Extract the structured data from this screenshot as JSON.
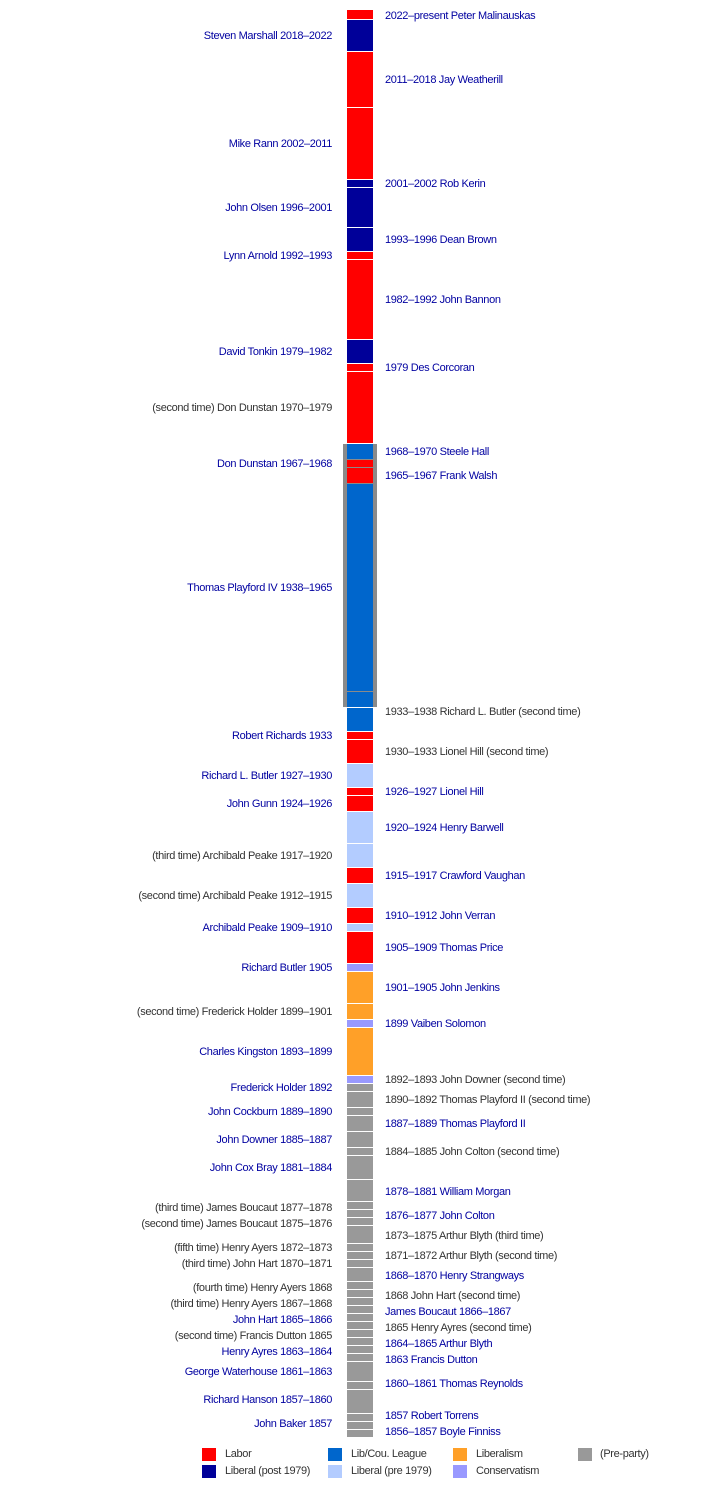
{
  "colors": {
    "Labor": "#ff0000",
    "Liberal (post 1979)": "#000099",
    "Lib/Cou. League": "#0066cc",
    "Liberal (pre 1979)": "#b3ccff",
    "Liberalism": "#ffa028",
    "Conservatism": "#9999ff",
    "(Pre-party)": "#999999"
  },
  "segments": [
    {
      "premier": "Peter Malinauskas",
      "party": "Labor"
    },
    {
      "premier": "Steven Marshall",
      "party": "Liberal (post 1979)"
    },
    {
      "premier": "Jay Weatherill",
      "party": "Labor"
    },
    {
      "premier": "Mike Rann",
      "party": "Labor"
    },
    {
      "premier": "Rob Kerin",
      "party": "Liberal (post 1979)"
    },
    {
      "premier": "John Olsen",
      "party": "Liberal (post 1979)"
    },
    {
      "premier": "Dean Brown",
      "party": "Liberal (post 1979)"
    },
    {
      "premier": "Lynn Arnold",
      "party": "Labor"
    },
    {
      "premier": "John Bannon",
      "party": "Labor"
    },
    {
      "premier": "David Tonkin",
      "party": "Liberal (post 1979)"
    },
    {
      "premier": "Des Corcoran",
      "party": "Labor"
    },
    {
      "premier": "Don Dunstan (second time)",
      "party": "Labor"
    },
    {
      "premier": "Steele Hall",
      "party": "Lib/Cou. League"
    },
    {
      "premier": "Don Dunstan",
      "party": "Labor"
    },
    {
      "premier": "Frank Walsh",
      "party": "Labor"
    },
    {
      "premier": "Thomas Playford IV",
      "party": "Lib/Cou. League"
    },
    {
      "premier": "Thomas Playford IV",
      "party": "Lib/Cou. League"
    },
    {
      "premier": "Richard L. Butler (second time)",
      "party": "Lib/Cou. League"
    },
    {
      "premier": "Robert Richards",
      "party": "Labor"
    },
    {
      "premier": "Lionel Hill (second time)",
      "party": "Labor"
    },
    {
      "premier": "Richard L. Butler",
      "party": "Liberal (pre 1979)"
    },
    {
      "premier": "Lionel Hill",
      "party": "Labor"
    },
    {
      "premier": "John Gunn",
      "party": "Labor"
    },
    {
      "premier": "Henry Barwell",
      "party": "Liberal (pre 1979)"
    },
    {
      "premier": "Archibald Peake (third time)",
      "party": "Liberal (pre 1979)"
    },
    {
      "premier": "Crawford Vaughan",
      "party": "Labor"
    },
    {
      "premier": "Archibald Peake (second time)",
      "party": "Liberal (pre 1979)"
    },
    {
      "premier": "John Verran",
      "party": "Labor"
    },
    {
      "premier": "Archibald Peake",
      "party": "Liberal (pre 1979)"
    },
    {
      "premier": "Thomas Price",
      "party": "Labor"
    },
    {
      "premier": "Richard Butler",
      "party": "Conservatism"
    },
    {
      "premier": "John Jenkins",
      "party": "Liberalism"
    },
    {
      "premier": "Frederick Holder (second time)",
      "party": "Liberalism"
    },
    {
      "premier": "Vaiben Solomon",
      "party": "Conservatism"
    },
    {
      "premier": "Charles Kingston",
      "party": "Liberalism"
    },
    {
      "premier": "John Downer (second time)",
      "party": "Conservatism"
    },
    {
      "premier": "Frederick Holder",
      "party": "(Pre-party)"
    },
    {
      "premier": "Thomas Playford II (second time)",
      "party": "(Pre-party)"
    },
    {
      "premier": "John Cockburn",
      "party": "(Pre-party)"
    },
    {
      "premier": "Thomas Playford II",
      "party": "(Pre-party)"
    },
    {
      "premier": "John Downer",
      "party": "(Pre-party)"
    },
    {
      "premier": "John Colton (second time)",
      "party": "(Pre-party)"
    },
    {
      "premier": "John Cox Bray",
      "party": "(Pre-party)"
    },
    {
      "premier": "William Morgan",
      "party": "(Pre-party)"
    },
    {
      "premier": "James Boucaut (third time)",
      "party": "(Pre-party)"
    },
    {
      "premier": "John Colton",
      "party": "(Pre-party)"
    },
    {
      "premier": "James Boucaut (second time)",
      "party": "(Pre-party)"
    },
    {
      "premier": "Arthur Blyth (third time)",
      "party": "(Pre-party)"
    },
    {
      "premier": "Henry Ayers (fifth time)",
      "party": "(Pre-party)"
    },
    {
      "premier": "Arthur Blyth (second time)",
      "party": "(Pre-party)"
    },
    {
      "premier": "John Hart (third time)",
      "party": "(Pre-party)"
    },
    {
      "premier": "Henry Strangways",
      "party": "(Pre-party)"
    },
    {
      "premier": "Henry Ayers (fourth time)",
      "party": "(Pre-party)"
    },
    {
      "premier": "John Hart (second time)",
      "party": "(Pre-party)"
    },
    {
      "premier": "Henry Ayers (third time)",
      "party": "(Pre-party)"
    },
    {
      "premier": "James Boucaut",
      "party": "(Pre-party)"
    },
    {
      "premier": "John Hart",
      "party": "(Pre-party)"
    },
    {
      "premier": "Henry Ayres (second time)",
      "party": "(Pre-party)"
    },
    {
      "premier": "Francis Dutton (second time)",
      "party": "(Pre-party)"
    },
    {
      "premier": "Arthur Blyth",
      "party": "(Pre-party)"
    },
    {
      "premier": "Henry Ayres",
      "party": "(Pre-party)"
    },
    {
      "premier": "Francis Dutton",
      "party": "(Pre-party)"
    },
    {
      "premier": "George Waterhouse",
      "party": "(Pre-party)"
    },
    {
      "premier": "Thomas Reynolds",
      "party": "(Pre-party)"
    },
    {
      "premier": "Richard Hanson",
      "party": "(Pre-party)"
    },
    {
      "premier": "John Baker",
      "party": "(Pre-party)"
    },
    {
      "premier": "Robert Torrens",
      "party": "(Pre-party)"
    },
    {
      "premier": "Boyle Finniss",
      "party": "(Pre-party)"
    }
  ],
  "left_labels": [
    {
      "text": "Steven Marshall 2018–2022",
      "link": true
    },
    {
      "text": "Mike Rann 2002–2011",
      "link": true
    },
    {
      "text": "John Olsen 1996–2001",
      "link": true
    },
    {
      "text": "Lynn Arnold 1992–1993",
      "link": true
    },
    {
      "text": "David Tonkin 1979–1982",
      "link": true
    },
    {
      "text": "(second time) Don Dunstan 1970–1979",
      "link": false
    },
    {
      "text": "Don Dunstan 1967–1968",
      "link": true
    },
    {
      "text": "Thomas Playford IV 1938–1965",
      "link": true
    },
    {
      "text": "Robert Richards 1933",
      "link": true
    },
    {
      "text": "Richard L. Butler 1927–1930",
      "link": true
    },
    {
      "text": "John Gunn 1924–1926",
      "link": true
    },
    {
      "text": "(third time) Archibald Peake 1917–1920",
      "link": false
    },
    {
      "text": "(second time) Archibald Peake 1912–1915",
      "link": false
    },
    {
      "text": "Archibald Peake 1909–1910",
      "link": true
    },
    {
      "text": "Richard Butler 1905",
      "link": true
    },
    {
      "text": "(second time) Frederick Holder 1899–1901",
      "link": false
    },
    {
      "text": "Charles Kingston 1893–1899",
      "link": true
    },
    {
      "text": "Frederick Holder 1892",
      "link": true
    },
    {
      "text": "John Cockburn 1889–1890",
      "link": true
    },
    {
      "text": "John Downer 1885–1887",
      "link": true
    },
    {
      "text": "John Cox Bray 1881–1884",
      "link": true
    },
    {
      "text": "(third time) James Boucaut 1877–1878",
      "link": false
    },
    {
      "text": "(second time) James Boucaut 1875–1876",
      "link": false
    },
    {
      "text": "(fifth time) Henry Ayers 1872–1873",
      "link": false
    },
    {
      "text": "(third time) John Hart 1870–1871",
      "link": false
    },
    {
      "text": "(fourth time) Henry Ayers 1868",
      "link": false
    },
    {
      "text": "(third time) Henry Ayers 1867–1868",
      "link": false
    },
    {
      "text": "John Hart 1865–1866",
      "link": true
    },
    {
      "text": "(second time) Francis Dutton 1865",
      "link": false
    },
    {
      "text": "Henry Ayres 1863–1864",
      "link": true
    },
    {
      "text": "George Waterhouse 1861–1863",
      "link": true
    },
    {
      "text": "Richard Hanson 1857–1860",
      "link": true
    },
    {
      "text": "John Baker 1857",
      "link": true
    }
  ],
  "right_labels": [
    {
      "text": "2022–present Peter Malinauskas",
      "link": true
    },
    {
      "text": "2011–2018 Jay Weatherill",
      "link": true
    },
    {
      "text": "2001–2002 Rob Kerin",
      "link": true
    },
    {
      "text": "1993–1996 Dean Brown",
      "link": true
    },
    {
      "text": "1982–1992 John Bannon",
      "link": true
    },
    {
      "text": "1979 Des Corcoran",
      "link": true
    },
    {
      "text": "1968–1970 Steele Hall",
      "link": true
    },
    {
      "text": "1965–1967 Frank Walsh",
      "link": true
    },
    {
      "text": "1933–1938 Richard L. Butler (second time)",
      "link": false
    },
    {
      "text": "1930–1933 Lionel Hill (second time)",
      "link": false
    },
    {
      "text": "1926–1927 Lionel Hill",
      "link": true
    },
    {
      "text": "1920–1924 Henry Barwell",
      "link": true
    },
    {
      "text": "1915–1917 Crawford Vaughan",
      "link": true
    },
    {
      "text": "1910–1912 John Verran",
      "link": true
    },
    {
      "text": "1905–1909 Thomas Price",
      "link": true
    },
    {
      "text": "1901–1905 John Jenkins",
      "link": true
    },
    {
      "text": "1899 Vaiben Solomon",
      "link": true
    },
    {
      "text": "1892–1893 John Downer (second time)",
      "link": false
    },
    {
      "text": "1890–1892 Thomas Playford II (second time)",
      "link": false
    },
    {
      "text": "1887–1889 Thomas Playford II",
      "link": true
    },
    {
      "text": "1884–1885 John Colton (second time)",
      "link": false
    },
    {
      "text": "1878–1881 William Morgan",
      "link": true
    },
    {
      "text": "1876–1877 John Colton",
      "link": true
    },
    {
      "text": "1873–1875 Arthur Blyth (third time)",
      "link": false
    },
    {
      "text": "1871–1872 Arthur Blyth (second time)",
      "link": false
    },
    {
      "text": "1868–1870 Henry Strangways",
      "link": true
    },
    {
      "text": "1868 John Hart (second time)",
      "link": false
    },
    {
      "text": "James Boucaut 1866–1867",
      "link": true
    },
    {
      "text": "1865 Henry Ayres (second time)",
      "link": false
    },
    {
      "text": "1864–1865 Arthur Blyth",
      "link": true
    },
    {
      "text": "1863 Francis Dutton",
      "link": true
    },
    {
      "text": "1860–1861 Thomas Reynolds",
      "link": true
    },
    {
      "text": "1857 Robert Torrens",
      "link": true
    },
    {
      "text": "1856–1857 Boyle Finniss",
      "link": true
    }
  ],
  "legend": [
    "Labor",
    "Liberal (post 1979)",
    "Lib/Cou. League",
    "Liberal (pre 1979)",
    "Liberalism",
    "Conservatism",
    "(Pre-party)"
  ]
}
